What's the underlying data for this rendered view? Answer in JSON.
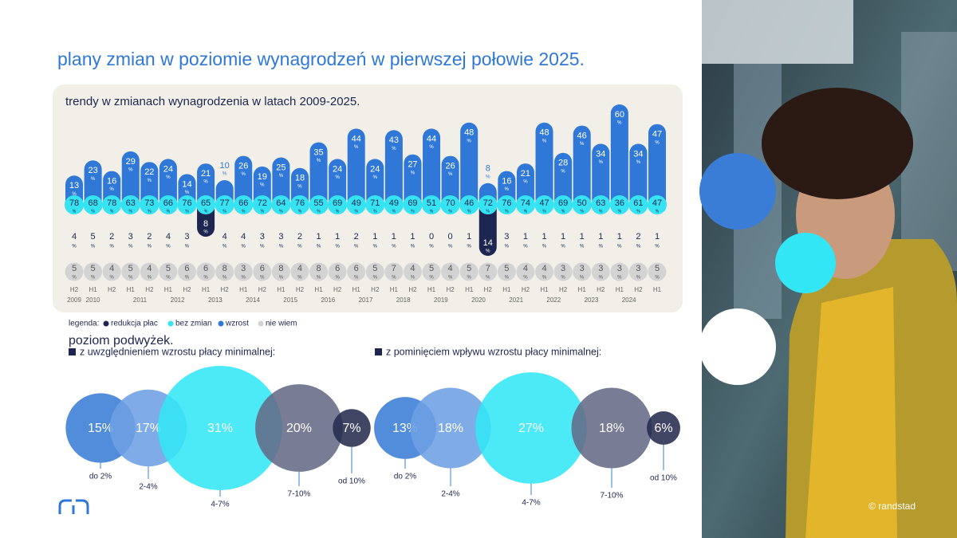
{
  "title": "plany zmian w poziomie wynagrodzeń w pierwszej połowie 2025.",
  "trend": {
    "subtitle": "trendy w zmianach wynagrodzenia w latach 2009-2025.",
    "unit": "%",
    "categories": [
      "H2",
      "H1",
      "H2",
      "H1",
      "H2",
      "H1",
      "H2",
      "H1",
      "H2",
      "H1",
      "H2",
      "H1",
      "H2",
      "H1",
      "H2",
      "H1",
      "H2",
      "H1",
      "H2",
      "H1",
      "H2",
      "H1",
      "H2",
      "H1",
      "H2",
      "H1",
      "H2",
      "H1",
      "H2",
      "H1",
      "H2",
      "H1"
    ],
    "years": [
      "2009",
      "2010",
      null,
      "2011",
      null,
      "2012",
      null,
      "2013",
      null,
      "2014",
      null,
      "2015",
      null,
      "2016",
      null,
      "2017",
      null,
      "2018",
      null,
      "2019",
      null,
      "2020",
      null,
      "2021",
      null,
      "2022",
      null,
      "2023",
      null,
      "2024",
      null,
      null
    ],
    "series": [
      {
        "name": "redukcja płac",
        "color": "#1d2650",
        "values": [
          4,
          5,
          2,
          3,
          2,
          4,
          3,
          8,
          4,
          4,
          3,
          3,
          2,
          1,
          1,
          2,
          1,
          1,
          1,
          0,
          0,
          1,
          14,
          3,
          1,
          1,
          1,
          1,
          1,
          1,
          2,
          1
        ]
      },
      {
        "name": "bez zmian",
        "color": "#35e3f2",
        "values": [
          78,
          68,
          78,
          63,
          73,
          66,
          76,
          65,
          77,
          66,
          72,
          64,
          76,
          55,
          69,
          49,
          71,
          49,
          69,
          51,
          70,
          46,
          72,
          76,
          74,
          47,
          69,
          50,
          63,
          36,
          61,
          47
        ]
      },
      {
        "name": "wzrost",
        "color": "#2f78d8",
        "values": [
          13,
          23,
          16,
          29,
          22,
          24,
          14,
          21,
          10,
          26,
          19,
          25,
          18,
          35,
          24,
          44,
          24,
          43,
          27,
          44,
          26,
          48,
          8,
          16,
          21,
          48,
          28,
          46,
          34,
          60,
          34,
          47
        ]
      },
      {
        "name": "nie wiem",
        "color": "#d3d3d3",
        "values": [
          5,
          5,
          4,
          5,
          4,
          5,
          6,
          6,
          8,
          3,
          6,
          8,
          4,
          8,
          6,
          6,
          5,
          7,
          4,
          5,
          4,
          5,
          7,
          5,
          4,
          4,
          3,
          3,
          3,
          3,
          3,
          5
        ]
      }
    ],
    "legend_title": "legenda:"
  },
  "raises": {
    "title": "poziom podwyżek.",
    "labels": [
      "do 2%",
      "2-4%",
      "4-7%",
      "7-10%",
      "od 10%"
    ],
    "colors": [
      "#3a7dd6",
      "#6d9fe3",
      "#33e6f5",
      "#656b86",
      "#262c4e"
    ],
    "groups": [
      {
        "heading": "z uwzględnieniem wzrostu płacy minimalnej:",
        "values": [
          15,
          17,
          31,
          20,
          7
        ],
        "value_labels": [
          "15%",
          "17%",
          "31%",
          "20%",
          "7%"
        ]
      },
      {
        "heading": "z pominięciem wpływu wzrostu płacy minimalnej:",
        "values": [
          13,
          18,
          27,
          18,
          6
        ],
        "value_labels": [
          "13%",
          "18%",
          "27%",
          "18%",
          "6%"
        ]
      }
    ]
  },
  "credit": "© randstad"
}
